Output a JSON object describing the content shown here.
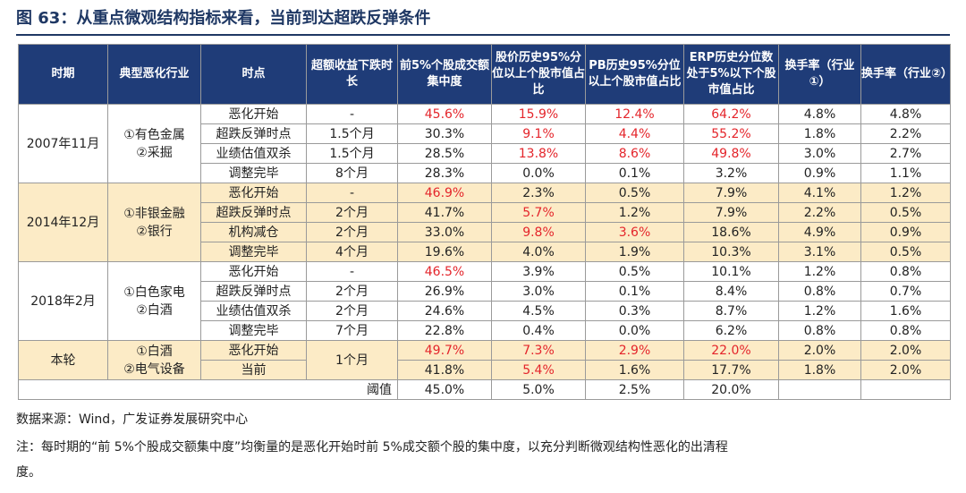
{
  "title": "图 63：从重点微观结构指标来看，当前到达超跌反弹条件",
  "headers": [
    "时期",
    "典型恶化行业",
    "时点",
    "超额收益下跌时长",
    "前5%个股成交额集中度",
    "股价历史95%分位以上个股市值占比",
    "PB历史95%分位以上个股市值占比",
    "ERP历史分位数处于5%以下个股市值占比",
    "换手率（行业①）",
    "换手率（行业②）"
  ],
  "groups": [
    {
      "period": "2007年11月",
      "industries": [
        "①有色金属",
        "②采掘"
      ],
      "rows": [
        {
          "point": "恶化开始",
          "duration": "-",
          "conc": "45.6%",
          "p95": "15.9%",
          "pb95": "12.4%",
          "erp": "64.2%",
          "t1": "4.8%",
          "t2": "4.8%"
        },
        {
          "point": "超跌反弹时点",
          "duration": "1.5个月",
          "conc": "30.3%",
          "p95": "9.1%",
          "pb95": "4.4%",
          "erp": "55.2%",
          "t1": "1.8%",
          "t2": "2.2%"
        },
        {
          "point": "业绩估值双杀",
          "duration": "1.5个月",
          "conc": "28.5%",
          "p95": "13.8%",
          "pb95": "8.6%",
          "erp": "49.8%",
          "t1": "3.0%",
          "t2": "2.7%"
        },
        {
          "point": "调整完毕",
          "duration": "8个月",
          "conc": "28.3%",
          "p95": "0.0%",
          "pb95": "0.1%",
          "erp": "3.2%",
          "t1": "0.9%",
          "t2": "1.1%"
        }
      ]
    },
    {
      "period": "2014年12月",
      "industries": [
        "①非银金融",
        "②银行"
      ],
      "rows": [
        {
          "point": "恶化开始",
          "duration": "-",
          "conc": "46.9%",
          "p95": "2.3%",
          "pb95": "0.5%",
          "erp": "7.9%",
          "t1": "4.1%",
          "t2": "1.2%"
        },
        {
          "point": "超跌反弹时点",
          "duration": "2个月",
          "conc": "41.7%",
          "p95": "5.7%",
          "pb95": "1.2%",
          "erp": "7.9%",
          "t1": "2.2%",
          "t2": "0.5%"
        },
        {
          "point": "机构减仓",
          "duration": "2个月",
          "conc": "33.0%",
          "p95": "9.8%",
          "pb95": "3.6%",
          "erp": "18.6%",
          "t1": "4.9%",
          "t2": "0.9%"
        },
        {
          "point": "调整完毕",
          "duration": "4个月",
          "conc": "19.6%",
          "p95": "4.0%",
          "pb95": "1.9%",
          "erp": "10.3%",
          "t1": "3.1%",
          "t2": "0.5%"
        }
      ]
    },
    {
      "period": "2018年2月",
      "industries": [
        "①白色家电",
        "②白酒"
      ],
      "rows": [
        {
          "point": "恶化开始",
          "duration": "-",
          "conc": "46.5%",
          "p95": "3.9%",
          "pb95": "0.5%",
          "erp": "10.1%",
          "t1": "1.2%",
          "t2": "0.8%"
        },
        {
          "point": "超跌反弹时点",
          "duration": "2个月",
          "conc": "26.9%",
          "p95": "3.0%",
          "pb95": "0.1%",
          "erp": "8.4%",
          "t1": "0.8%",
          "t2": "0.7%"
        },
        {
          "point": "业绩估值双杀",
          "duration": "2个月",
          "conc": "24.6%",
          "p95": "4.5%",
          "pb95": "0.3%",
          "erp": "8.7%",
          "t1": "1.2%",
          "t2": "1.6%"
        },
        {
          "point": "调整完毕",
          "duration": "7个月",
          "conc": "22.8%",
          "p95": "0.4%",
          "pb95": "0.0%",
          "erp": "6.2%",
          "t1": "0.8%",
          "t2": "0.8%"
        }
      ]
    },
    {
      "period": "本轮",
      "industries": [
        "①白酒",
        "②电气设备"
      ],
      "duration": "1个月",
      "rows": [
        {
          "point": "恶化开始",
          "conc": "49.7%",
          "p95": "7.3%",
          "pb95": "2.9%",
          "erp": "22.0%",
          "t1": "2.0%",
          "t2": "2.0%"
        },
        {
          "point": "当前",
          "conc": "41.8%",
          "p95": "5.4%",
          "pb95": "1.6%",
          "erp": "17.7%",
          "t1": "1.8%",
          "t2": "2.0%"
        }
      ]
    }
  ],
  "threshold": {
    "label": "阈值",
    "conc": "45.0%",
    "p95": "5.0%",
    "pb95": "2.5%",
    "erp": "20.0%"
  },
  "source": "数据来源：Wind，广发证券发展研究中心",
  "note_line1": "注：每时期的“前 5%个股成交额集中度”均衡量的是恶化开始时前 5%成交额个股的集中度，以充分判断微观结构性恶化的出清程",
  "note_line2": "度。",
  "colors": {
    "header_bg": "#1f3c78",
    "highlight": "#fcebc6",
    "alert": "#e4252b",
    "title": "#1f3864"
  }
}
